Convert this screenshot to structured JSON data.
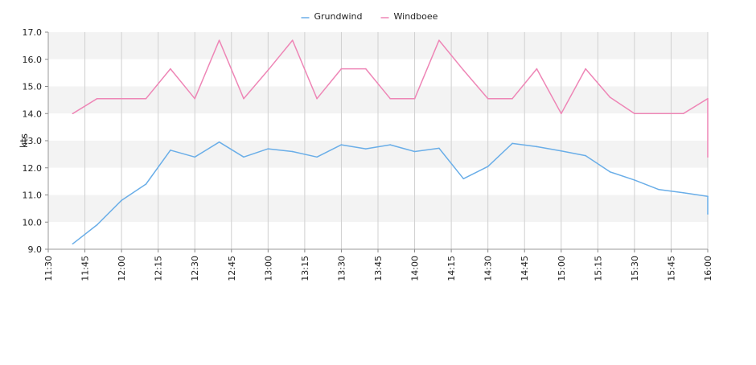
{
  "chart_data": {
    "type": "line",
    "ylabel": "kts",
    "xlabel": "",
    "ylim": [
      9.0,
      17.0
    ],
    "y_ticks": [
      "9.0",
      "10.0",
      "11.0",
      "12.0",
      "13.0",
      "14.0",
      "15.0",
      "16.0",
      "17.0"
    ],
    "x_range": [
      "11:30",
      "16:00"
    ],
    "x_ticks": [
      "11:30",
      "11:45",
      "12:00",
      "12:15",
      "12:30",
      "12:45",
      "13:00",
      "13:15",
      "13:30",
      "13:45",
      "14:00",
      "14:15",
      "14:30",
      "14:45",
      "15:00",
      "15:15",
      "15:30",
      "15:45",
      "16:00"
    ],
    "legend_position": "top-center",
    "grid": {
      "horizontal_bands": true,
      "vertical_lines": true
    },
    "series": [
      {
        "name": "Grundwind",
        "color": "#6aaee8",
        "points": [
          [
            "11:40",
            9.2
          ],
          [
            "11:50",
            9.9
          ],
          [
            "12:00",
            10.8
          ],
          [
            "12:10",
            11.4
          ],
          [
            "12:20",
            12.65
          ],
          [
            "12:30",
            12.4
          ],
          [
            "12:40",
            12.95
          ],
          [
            "12:50",
            12.4
          ],
          [
            "13:00",
            12.7
          ],
          [
            "13:10",
            12.6
          ],
          [
            "13:20",
            12.4
          ],
          [
            "13:30",
            12.85
          ],
          [
            "13:40",
            12.7
          ],
          [
            "13:50",
            12.85
          ],
          [
            "14:00",
            12.6
          ],
          [
            "14:10",
            12.72
          ],
          [
            "14:20",
            11.6
          ],
          [
            "14:30",
            12.05
          ],
          [
            "14:40",
            12.9
          ],
          [
            "14:50",
            12.78
          ],
          [
            "15:00",
            12.62
          ],
          [
            "15:10",
            12.45
          ],
          [
            "15:20",
            11.85
          ],
          [
            "15:30",
            11.55
          ],
          [
            "15:40",
            11.2
          ],
          [
            "15:50",
            11.08
          ],
          [
            "16:00",
            10.95
          ],
          [
            "16:00",
            10.3
          ]
        ]
      },
      {
        "name": "Windboee",
        "color": "#ee86b6",
        "points": [
          [
            "11:40",
            14.0
          ],
          [
            "11:50",
            14.55
          ],
          [
            "12:00",
            14.55
          ],
          [
            "12:10",
            14.55
          ],
          [
            "12:20",
            15.65
          ],
          [
            "12:30",
            14.55
          ],
          [
            "12:40",
            16.7
          ],
          [
            "12:50",
            14.55
          ],
          [
            "13:00",
            15.6
          ],
          [
            "13:10",
            16.7
          ],
          [
            "13:20",
            14.55
          ],
          [
            "13:30",
            15.65
          ],
          [
            "13:40",
            15.65
          ],
          [
            "13:50",
            14.55
          ],
          [
            "14:00",
            14.55
          ],
          [
            "14:10",
            16.7
          ],
          [
            "14:20",
            15.6
          ],
          [
            "14:30",
            14.55
          ],
          [
            "14:40",
            14.55
          ],
          [
            "14:50",
            15.65
          ],
          [
            "15:00",
            14.0
          ],
          [
            "15:10",
            15.65
          ],
          [
            "15:20",
            14.6
          ],
          [
            "15:30",
            14.0
          ],
          [
            "15:40",
            14.0
          ],
          [
            "15:50",
            14.0
          ],
          [
            "16:00",
            14.55
          ],
          [
            "16:00",
            12.4
          ]
        ]
      }
    ]
  }
}
